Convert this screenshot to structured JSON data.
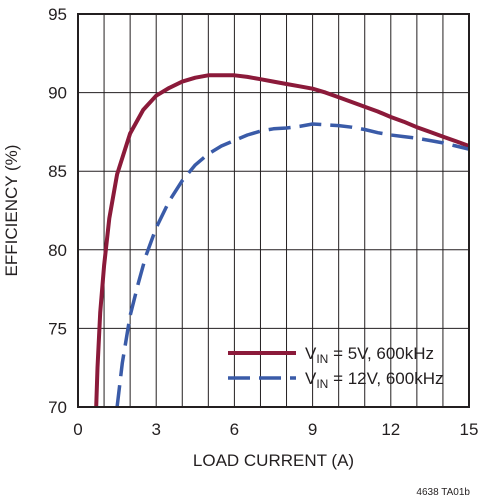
{
  "chart_data": {
    "type": "line",
    "title": "",
    "xlabel": "LOAD CURRENT (A)",
    "ylabel": "EFFICIENCY (%)",
    "xlim": [
      0,
      15
    ],
    "ylim": [
      70,
      95
    ],
    "xticks": [
      "0",
      "3",
      "6",
      "9",
      "12",
      "15"
    ],
    "yticks": [
      "70",
      "75",
      "80",
      "85",
      "90",
      "95"
    ],
    "grid": {
      "vertical_every": 1,
      "horizontal_every": 5
    },
    "legend_position": "bottom-right",
    "series": [
      {
        "name": "VIN = 5V, 600kHz",
        "legend": {
          "pre": "V",
          "sub": "IN",
          "post": " = 5V, 600kHz"
        },
        "color": "#8b1a3a",
        "style": "solid",
        "x": [
          0.7,
          0.75,
          0.85,
          1.0,
          1.2,
          1.5,
          2.0,
          2.5,
          3.0,
          3.5,
          4.0,
          4.5,
          5.0,
          5.5,
          6.0,
          6.5,
          7.0,
          7.5,
          8.0,
          8.5,
          9.0,
          9.5,
          10.0,
          10.5,
          11.0,
          11.5,
          12.0,
          12.5,
          13.0,
          13.5,
          14.0,
          14.5,
          15.0
        ],
        "y": [
          70.0,
          72.5,
          76.0,
          79.0,
          82.0,
          84.8,
          87.4,
          88.9,
          89.8,
          90.3,
          90.7,
          90.95,
          91.1,
          91.1,
          91.1,
          91.0,
          90.85,
          90.7,
          90.55,
          90.4,
          90.25,
          90.0,
          89.7,
          89.4,
          89.1,
          88.8,
          88.45,
          88.15,
          87.8,
          87.5,
          87.2,
          86.9,
          86.6
        ]
      },
      {
        "name": "VIN = 12V, 600kHz",
        "legend": {
          "pre": "V",
          "sub": "IN",
          "post": " = 12V, 600kHz"
        },
        "color": "#3a5ba8",
        "style": "dashed",
        "x": [
          1.5,
          1.7,
          2.0,
          2.3,
          2.6,
          3.0,
          3.5,
          4.0,
          4.5,
          5.0,
          5.5,
          6.0,
          6.5,
          7.0,
          7.5,
          8.0,
          8.5,
          9.0,
          9.5,
          10.0,
          10.5,
          11.0,
          11.5,
          12.0,
          12.5,
          13.0,
          13.5,
          14.0,
          14.5,
          15.0
        ],
        "y": [
          70.0,
          72.8,
          75.8,
          77.8,
          79.6,
          81.4,
          83.1,
          84.4,
          85.4,
          86.1,
          86.6,
          86.95,
          87.3,
          87.55,
          87.7,
          87.75,
          87.85,
          88.0,
          87.95,
          87.9,
          87.8,
          87.65,
          87.45,
          87.3,
          87.2,
          87.1,
          86.95,
          86.8,
          86.6,
          86.4
        ]
      }
    ]
  },
  "footnote": "4638 TA01b"
}
